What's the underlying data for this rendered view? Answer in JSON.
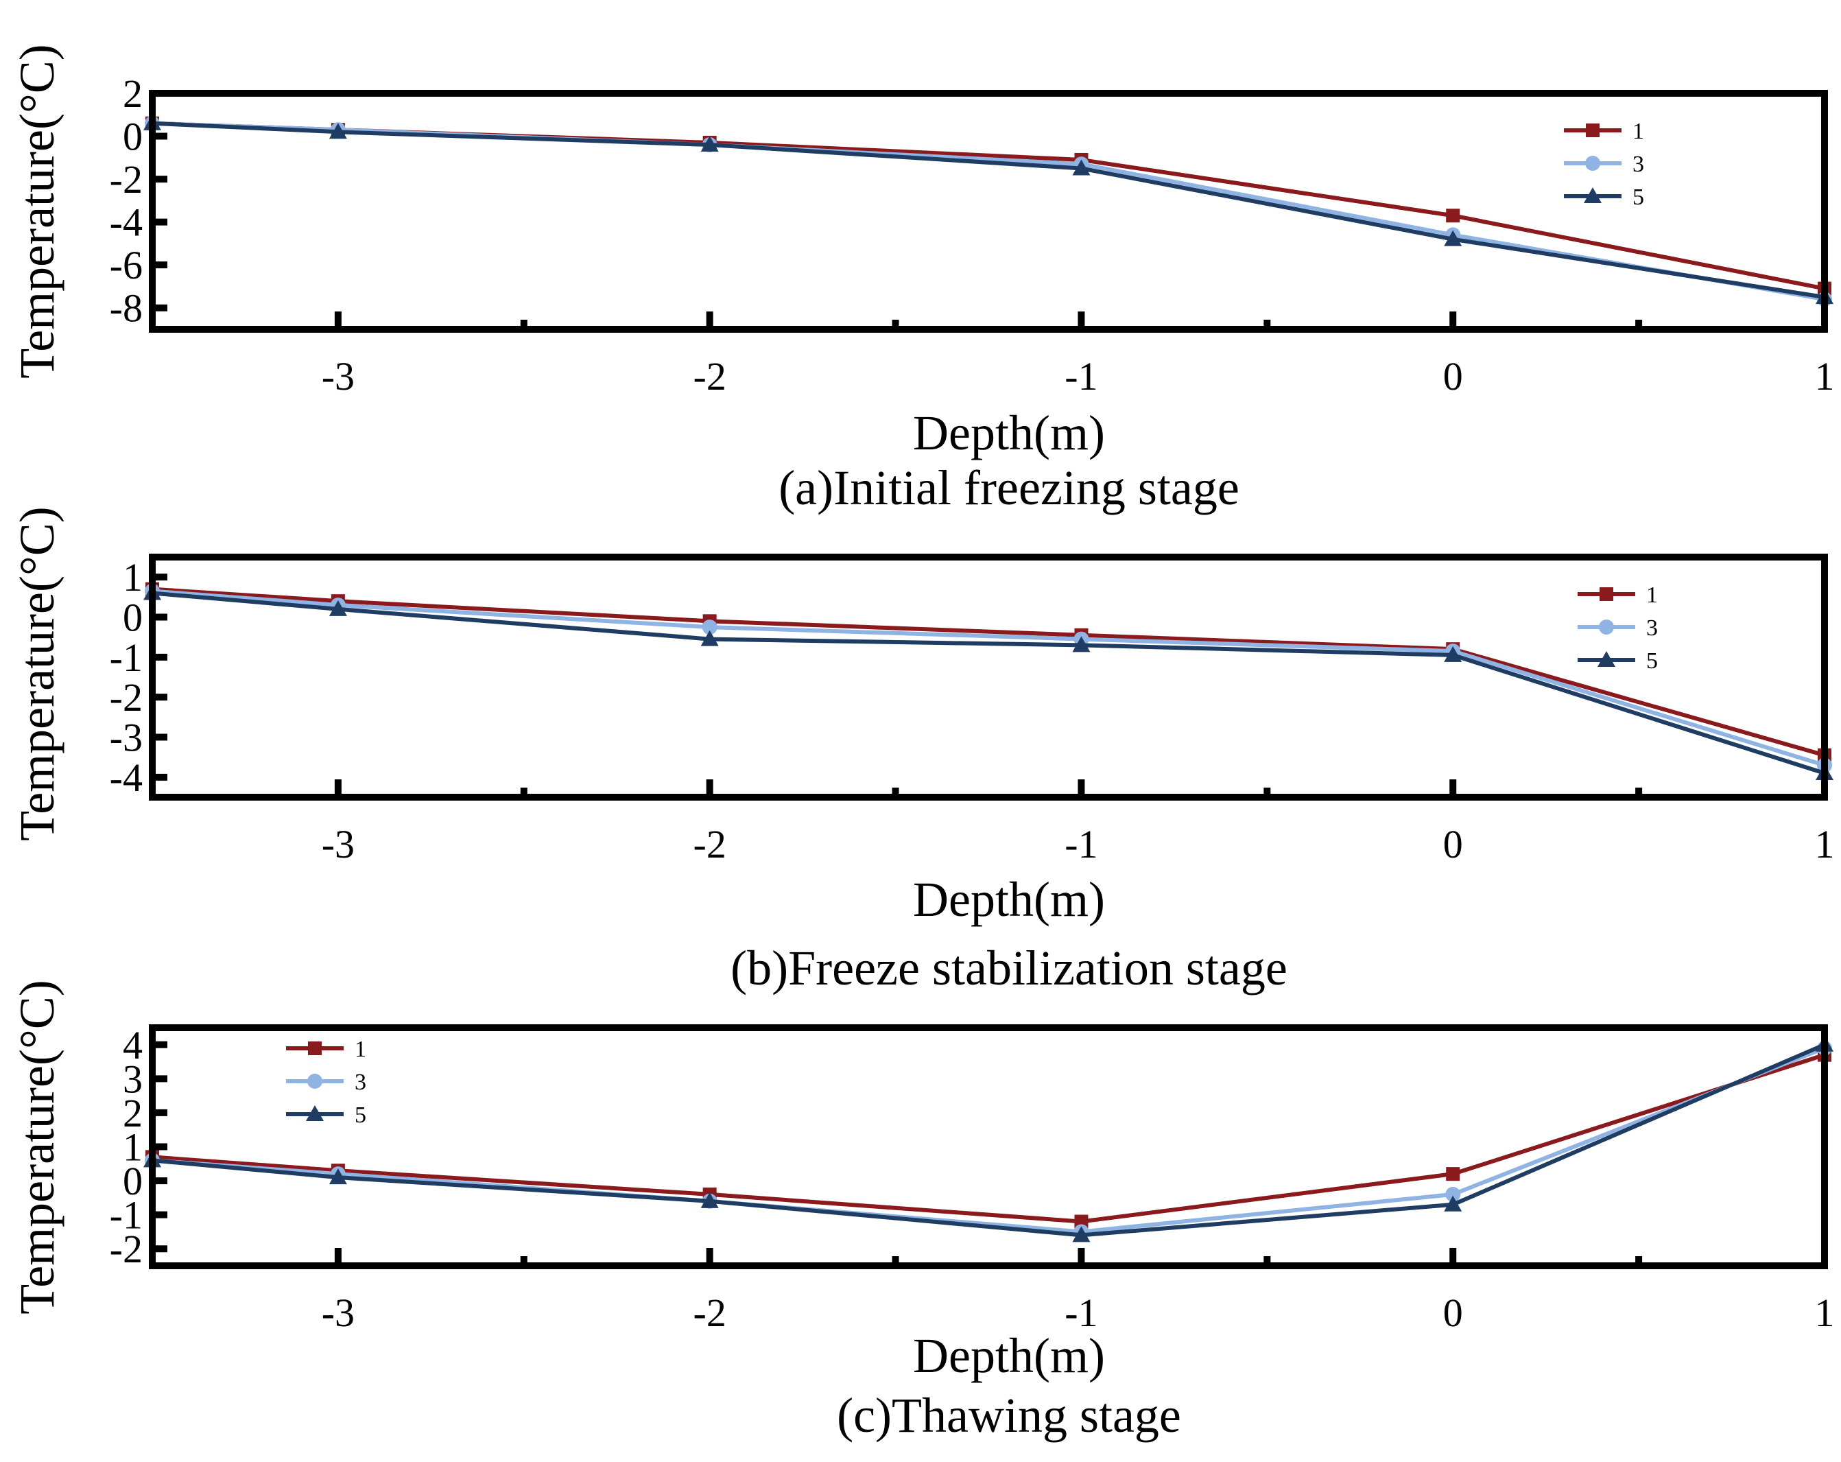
{
  "colors": {
    "series_1": "#8b1a1d",
    "series_3": "#8fb4e3",
    "series_5": "#1f3d63",
    "frame": "#000000"
  },
  "chart_data": [
    {
      "type": "line",
      "caption": "(a)Initial freezing stage",
      "xlabel": "Depth(m)",
      "ylabel": "Temperature(°C)",
      "xlim": [
        -3.5,
        1
      ],
      "ylim": [
        -9,
        2
      ],
      "xticks": [
        "-3",
        "-2",
        "-1",
        "0",
        "1"
      ],
      "yticks": [
        "2",
        "0",
        "-2",
        "-4",
        "-6",
        "-8"
      ],
      "legend_position": "top-right",
      "x": [
        -3.5,
        -3,
        -2,
        -1,
        0,
        1
      ],
      "series": [
        {
          "name": "1",
          "marker": "square",
          "values": [
            0.6,
            0.3,
            -0.3,
            -1.1,
            -3.7,
            -7.1
          ]
        },
        {
          "name": "3",
          "marker": "circle",
          "values": [
            0.6,
            0.3,
            -0.4,
            -1.3,
            -4.6,
            -7.6
          ]
        },
        {
          "name": "5",
          "marker": "triangle",
          "values": [
            0.6,
            0.2,
            -0.4,
            -1.5,
            -4.8,
            -7.5
          ]
        }
      ]
    },
    {
      "type": "line",
      "caption": "(b)Freeze stabilization stage",
      "xlabel": "Depth(m)",
      "ylabel": "Temperature(°C)",
      "xlim": [
        -3.5,
        1
      ],
      "ylim": [
        -4.5,
        1.5
      ],
      "xticks": [
        "-3",
        "-2",
        "-1",
        "0",
        "1"
      ],
      "yticks": [
        "1",
        "0",
        "-1",
        "-2",
        "-3",
        "-4"
      ],
      "legend_position": "top-right",
      "x": [
        -3.5,
        -3,
        -2,
        -1,
        0,
        1
      ],
      "series": [
        {
          "name": "1",
          "marker": "square",
          "values": [
            0.7,
            0.4,
            -0.1,
            -0.45,
            -0.8,
            -3.45
          ]
        },
        {
          "name": "3",
          "marker": "circle",
          "values": [
            0.65,
            0.3,
            -0.25,
            -0.55,
            -0.85,
            -3.7
          ]
        },
        {
          "name": "5",
          "marker": "triangle",
          "values": [
            0.6,
            0.2,
            -0.55,
            -0.7,
            -0.95,
            -3.9
          ]
        }
      ]
    },
    {
      "type": "line",
      "caption": "(c)Thawing stage",
      "xlabel": "Depth(m)",
      "ylabel": "Temperature(°C)",
      "xlim": [
        -3.5,
        1
      ],
      "ylim": [
        -2.5,
        4.5
      ],
      "xticks": [
        "-3",
        "-2",
        "-1",
        "0",
        "1"
      ],
      "yticks": [
        "4",
        "3",
        "2",
        "1",
        "0",
        "-1",
        "-2"
      ],
      "legend_position": "top-left",
      "x": [
        -3.5,
        -3,
        -2,
        -1,
        0,
        1
      ],
      "series": [
        {
          "name": "1",
          "marker": "square",
          "values": [
            0.7,
            0.3,
            -0.4,
            -1.2,
            0.2,
            3.7
          ]
        },
        {
          "name": "3",
          "marker": "circle",
          "values": [
            0.6,
            0.2,
            -0.6,
            -1.5,
            -0.4,
            3.9
          ]
        },
        {
          "name": "5",
          "marker": "triangle",
          "values": [
            0.6,
            0.1,
            -0.6,
            -1.6,
            -0.7,
            4.0
          ]
        }
      ]
    }
  ]
}
